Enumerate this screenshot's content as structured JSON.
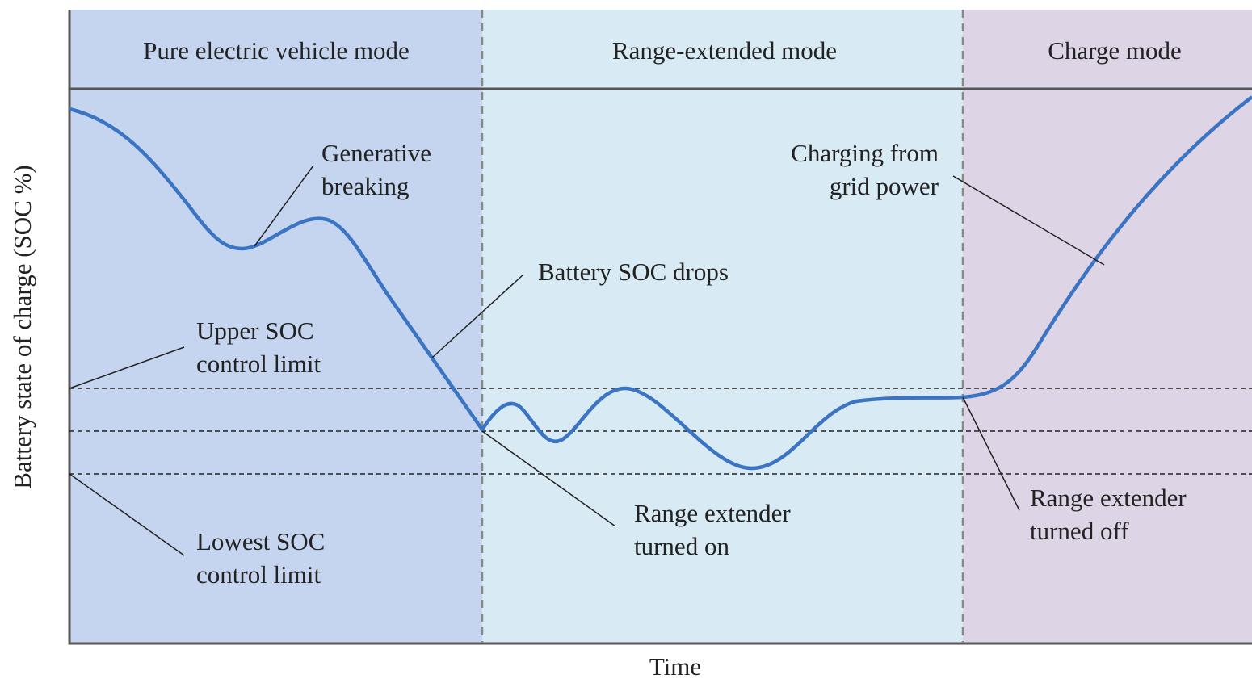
{
  "header": {
    "modes": [
      "Pure electric vehicle mode",
      "Range-extended mode",
      "Charge mode"
    ]
  },
  "axes": {
    "y_label": "Battery state of charge (SOC %)",
    "x_label": "Time"
  },
  "annotations": [
    {
      "lines": [
        "Generative",
        "breaking"
      ]
    },
    {
      "lines": [
        "Battery SOC drops"
      ]
    },
    {
      "lines": [
        "Upper SOC",
        "control limit"
      ]
    },
    {
      "lines": [
        "Lowest SOC",
        "control limit"
      ]
    },
    {
      "lines": [
        "Range extender",
        "turned on"
      ]
    },
    {
      "lines": [
        "Charging from",
        "grid power"
      ]
    },
    {
      "lines": [
        "Range extender",
        "turned off"
      ]
    }
  ]
}
